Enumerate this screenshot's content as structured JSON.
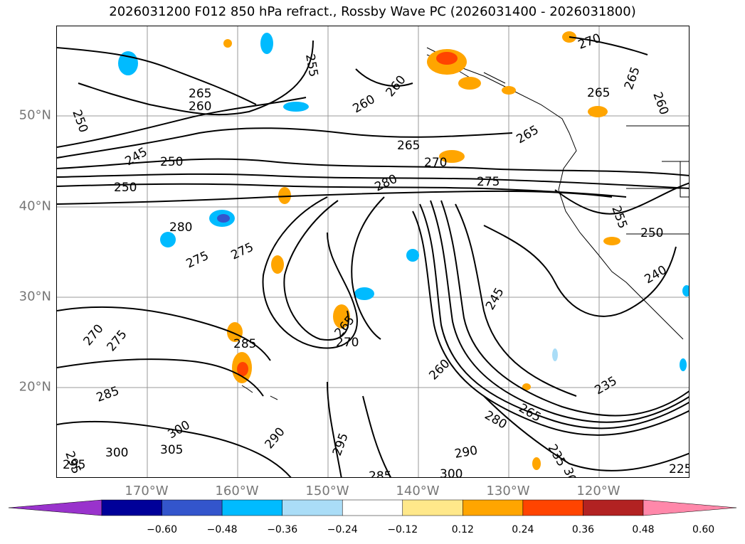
{
  "title": "2026031200 F012 850 hPa refract., Rossby Wave PC (2026031400 - 2026031800)",
  "lat_labels": [
    "50°N",
    "40°N",
    "30°N",
    "20°N"
  ],
  "lon_labels": [
    "170°W",
    "160°W",
    "150°W",
    "140°W",
    "130°W",
    "120°W"
  ],
  "colorbar": {
    "colors": [
      "#9933cc",
      "#000099",
      "#3355cc",
      "#00bbff",
      "#aaddf7",
      "#ffffff",
      "#ffe88a",
      "#ffa500",
      "#ff4400",
      "#b22222",
      "#ff88aa"
    ],
    "ticks": [
      "−0.60",
      "−0.48",
      "−0.36",
      "−0.24",
      "−0.12",
      "0.12",
      "0.24",
      "0.36",
      "0.48",
      "0.60"
    ]
  },
  "contour_labels": [
    "250",
    "265",
    "260",
    "255",
    "260",
    "260",
    "270",
    "265",
    "265",
    "260",
    "250",
    "245",
    "250",
    "265",
    "265",
    "270",
    "280",
    "275",
    "280",
    "275",
    "275",
    "255",
    "250",
    "240",
    "245",
    "270",
    "275",
    "285",
    "270",
    "265",
    "260",
    "235",
    "285",
    "280",
    "265",
    "295",
    "300",
    "305",
    "290",
    "300",
    "295",
    "290",
    "300",
    "295",
    "285",
    "300",
    "235",
    "225"
  ]
}
